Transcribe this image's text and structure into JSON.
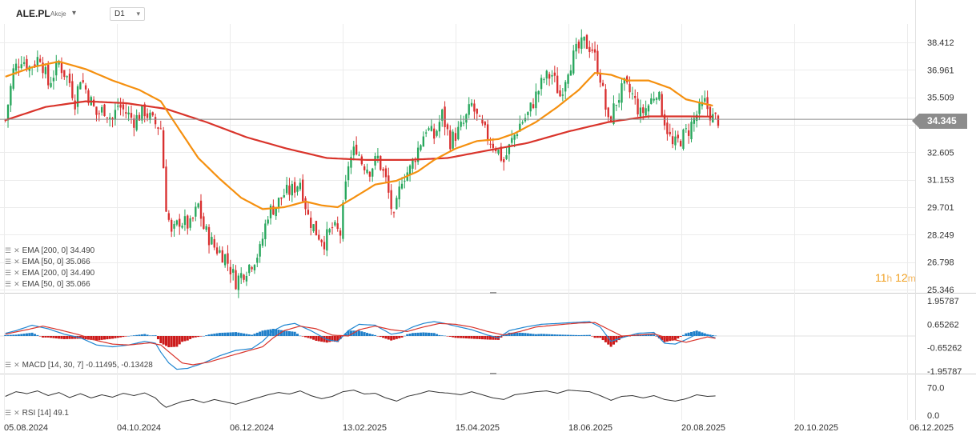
{
  "header": {
    "symbol": "ALE.PL",
    "type": "Akcje",
    "timeframe": "D1"
  },
  "legend": {
    "main": [
      "EMA [200, 0] 34.490",
      "EMA [50, 0] 35.066",
      "EMA [200, 0] 34.490",
      "EMA [50, 0] 35.066"
    ],
    "macd": "MACD [14, 30, 7] -0.11495, -0.13428",
    "rsi": "RSI [14] 49.1"
  },
  "current_price": "34.345",
  "countdown": {
    "h": "11",
    "h_unit": "h",
    "m": "12",
    "m_unit": "m"
  },
  "colors": {
    "up": "#26a65b",
    "down": "#d93030",
    "ema50": "#f5900f",
    "ema200": "#d9342b",
    "macd_line": "#1f86d1",
    "signal_line": "#d9342b",
    "hist_pos": "#1f7fc9",
    "hist_neg": "#cc1a1a",
    "rsi": "#333333",
    "grid": "#ececec"
  },
  "chart_data": [
    {
      "type": "candlestick",
      "price_axis": [
        "38.412",
        "36.961",
        "35.509",
        "34.057",
        "32.605",
        "31.153",
        "29.701",
        "28.249",
        "26.798",
        "25.346"
      ],
      "ylim": [
        25.346,
        38.412
      ],
      "date_labels": [
        "05.08.2024",
        "04.10.2024",
        "06.12.2024",
        "13.02.2025",
        "15.04.2025",
        "18.06.2025",
        "20.08.2025",
        "20.10.2025",
        "06.12.2025"
      ],
      "close_path": [
        [
          0,
          34.3
        ],
        [
          3,
          36.9
        ],
        [
          6,
          37.6
        ],
        [
          9,
          37.1
        ],
        [
          13,
          37.7
        ],
        [
          16,
          36.2
        ],
        [
          20,
          37.3
        ],
        [
          24,
          36.3
        ],
        [
          26,
          35.3
        ],
        [
          28,
          36.6
        ],
        [
          31,
          35.6
        ],
        [
          34,
          34.6
        ],
        [
          37,
          34.9
        ],
        [
          40,
          34.3
        ],
        [
          42,
          35.1
        ],
        [
          45,
          34.7
        ],
        [
          48,
          34.3
        ],
        [
          52,
          34.8
        ],
        [
          55,
          34.2
        ],
        [
          58,
          33.9
        ],
        [
          60,
          29.8
        ],
        [
          62,
          28.2
        ],
        [
          65,
          29.0
        ],
        [
          69,
          28.7
        ],
        [
          72,
          29.8
        ],
        [
          74,
          28.6
        ],
        [
          78,
          27.6
        ],
        [
          82,
          27.1
        ],
        [
          86,
          25.8
        ],
        [
          89,
          26.3
        ],
        [
          92,
          26.8
        ],
        [
          95,
          27.4
        ],
        [
          98,
          29.4
        ],
        [
          101,
          29.8
        ],
        [
          104,
          30.4
        ],
        [
          107,
          30.6
        ],
        [
          110,
          31.1
        ],
        [
          113,
          29.2
        ],
        [
          116,
          28.4
        ],
        [
          119,
          27.9
        ],
        [
          122,
          28.6
        ],
        [
          125,
          28.3
        ],
        [
          128,
          32.0
        ],
        [
          131,
          32.9
        ],
        [
          133,
          32.1
        ],
        [
          136,
          31.7
        ],
        [
          139,
          32.3
        ],
        [
          142,
          31.1
        ],
        [
          145,
          29.0
        ],
        [
          148,
          31.3
        ],
        [
          151,
          31.7
        ],
        [
          154,
          32.8
        ],
        [
          157,
          33.9
        ],
        [
          160,
          33.4
        ],
        [
          163,
          34.6
        ],
        [
          166,
          33.2
        ],
        [
          169,
          33.7
        ],
        [
          171,
          34.1
        ],
        [
          174,
          35.1
        ],
        [
          177,
          34.1
        ],
        [
          180,
          33.4
        ],
        [
          183,
          32.9
        ],
        [
          186,
          32.1
        ],
        [
          189,
          33.2
        ],
        [
          192,
          34.1
        ],
        [
          195,
          34.6
        ],
        [
          198,
          35.6
        ],
        [
          201,
          36.5
        ],
        [
          204,
          36.7
        ],
        [
          207,
          35.6
        ],
        [
          210,
          37.1
        ],
        [
          213,
          37.9
        ],
        [
          216,
          38.4
        ],
        [
          219,
          38.1
        ],
        [
          222,
          36.6
        ],
        [
          225,
          34.1
        ],
        [
          228,
          35.3
        ],
        [
          231,
          36.1
        ],
        [
          234,
          35.6
        ],
        [
          237,
          34.6
        ],
        [
          240,
          35.1
        ],
        [
          243,
          35.9
        ],
        [
          246,
          34.3
        ],
        [
          249,
          32.9
        ],
        [
          252,
          33.3
        ],
        [
          255,
          33.8
        ],
        [
          258,
          34.6
        ],
        [
          261,
          35.2
        ],
        [
          264,
          34.4
        ],
        [
          266,
          34.345
        ]
      ],
      "ema50_path": [
        [
          0,
          36.6
        ],
        [
          10,
          37.1
        ],
        [
          20,
          37.4
        ],
        [
          30,
          37.0
        ],
        [
          40,
          36.4
        ],
        [
          50,
          35.9
        ],
        [
          58,
          35.3
        ],
        [
          64,
          34.0
        ],
        [
          72,
          32.3
        ],
        [
          80,
          31.2
        ],
        [
          88,
          30.2
        ],
        [
          96,
          29.6
        ],
        [
          104,
          29.7
        ],
        [
          112,
          30.0
        ],
        [
          118,
          29.8
        ],
        [
          124,
          29.7
        ],
        [
          130,
          30.2
        ],
        [
          138,
          30.9
        ],
        [
          146,
          31.1
        ],
        [
          154,
          31.6
        ],
        [
          160,
          32.2
        ],
        [
          168,
          32.8
        ],
        [
          176,
          33.2
        ],
        [
          184,
          33.3
        ],
        [
          190,
          33.6
        ],
        [
          198,
          34.2
        ],
        [
          206,
          35.0
        ],
        [
          214,
          35.9
        ],
        [
          220,
          36.8
        ],
        [
          226,
          36.7
        ],
        [
          232,
          36.4
        ],
        [
          240,
          36.4
        ],
        [
          248,
          36.0
        ],
        [
          254,
          35.4
        ],
        [
          260,
          35.2
        ],
        [
          264,
          35.066
        ]
      ],
      "ema200_path": [
        [
          0,
          34.3
        ],
        [
          15,
          35.0
        ],
        [
          30,
          35.3
        ],
        [
          45,
          35.2
        ],
        [
          60,
          34.9
        ],
        [
          75,
          34.2
        ],
        [
          90,
          33.4
        ],
        [
          105,
          32.8
        ],
        [
          120,
          32.3
        ],
        [
          135,
          32.2
        ],
        [
          150,
          32.2
        ],
        [
          165,
          32.3
        ],
        [
          180,
          32.7
        ],
        [
          195,
          33.1
        ],
        [
          210,
          33.7
        ],
        [
          225,
          34.2
        ],
        [
          240,
          34.5
        ],
        [
          255,
          34.5
        ],
        [
          264,
          34.49
        ]
      ],
      "current_price": 34.345
    },
    {
      "type": "bar+line",
      "name": "MACD",
      "price_axis": [
        "1.95787",
        "0.65262",
        "-0.65262",
        "-1.95787"
      ],
      "ylim": [
        -1.95787,
        1.95787
      ],
      "macd_path": [
        [
          0,
          0.15
        ],
        [
          4,
          0.3
        ],
        [
          10,
          0.6
        ],
        [
          16,
          0.4
        ],
        [
          22,
          0.1
        ],
        [
          28,
          -0.1
        ],
        [
          34,
          -0.5
        ],
        [
          40,
          -0.6
        ],
        [
          46,
          -0.5
        ],
        [
          52,
          -0.3
        ],
        [
          56,
          -0.4
        ],
        [
          58,
          -0.9
        ],
        [
          61,
          -1.5
        ],
        [
          64,
          -1.85
        ],
        [
          68,
          -1.8
        ],
        [
          74,
          -1.5
        ],
        [
          80,
          -1.1
        ],
        [
          86,
          -0.8
        ],
        [
          92,
          -0.7
        ],
        [
          96,
          -0.3
        ],
        [
          100,
          0.3
        ],
        [
          104,
          0.6
        ],
        [
          108,
          0.7
        ],
        [
          114,
          0.3
        ],
        [
          120,
          -0.2
        ],
        [
          124,
          -0.3
        ],
        [
          128,
          0.3
        ],
        [
          132,
          0.65
        ],
        [
          138,
          0.6
        ],
        [
          144,
          0.1
        ],
        [
          148,
          0.2
        ],
        [
          152,
          0.5
        ],
        [
          156,
          0.7
        ],
        [
          160,
          0.8
        ],
        [
          164,
          0.7
        ],
        [
          168,
          0.55
        ],
        [
          174,
          0.35
        ],
        [
          180,
          0.05
        ],
        [
          184,
          -0.1
        ],
        [
          188,
          0.3
        ],
        [
          194,
          0.5
        ],
        [
          200,
          0.65
        ],
        [
          206,
          0.7
        ],
        [
          212,
          0.75
        ],
        [
          218,
          0.8
        ],
        [
          222,
          0.5
        ],
        [
          226,
          -0.3
        ],
        [
          230,
          -0.1
        ],
        [
          236,
          0.15
        ],
        [
          242,
          0.2
        ],
        [
          246,
          -0.4
        ],
        [
          250,
          -0.45
        ],
        [
          254,
          -0.2
        ],
        [
          258,
          0.1
        ],
        [
          262,
          0.05
        ],
        [
          265,
          -0.11
        ]
      ],
      "signal_path": [
        [
          0,
          0.1
        ],
        [
          8,
          0.35
        ],
        [
          14,
          0.55
        ],
        [
          20,
          0.35
        ],
        [
          28,
          0.05
        ],
        [
          34,
          -0.25
        ],
        [
          40,
          -0.45
        ],
        [
          46,
          -0.5
        ],
        [
          54,
          -0.38
        ],
        [
          58,
          -0.5
        ],
        [
          62,
          -1.0
        ],
        [
          66,
          -1.5
        ],
        [
          70,
          -1.6
        ],
        [
          76,
          -1.45
        ],
        [
          84,
          -1.1
        ],
        [
          90,
          -0.85
        ],
        [
          96,
          -0.6
        ],
        [
          100,
          -0.1
        ],
        [
          104,
          0.3
        ],
        [
          110,
          0.55
        ],
        [
          116,
          0.4
        ],
        [
          122,
          0.05
        ],
        [
          128,
          0.0
        ],
        [
          132,
          0.35
        ],
        [
          138,
          0.55
        ],
        [
          144,
          0.35
        ],
        [
          150,
          0.25
        ],
        [
          156,
          0.5
        ],
        [
          162,
          0.7
        ],
        [
          168,
          0.65
        ],
        [
          174,
          0.5
        ],
        [
          180,
          0.25
        ],
        [
          186,
          0.05
        ],
        [
          192,
          0.25
        ],
        [
          198,
          0.5
        ],
        [
          206,
          0.62
        ],
        [
          214,
          0.72
        ],
        [
          220,
          0.75
        ],
        [
          226,
          0.3
        ],
        [
          230,
          0.0
        ],
        [
          236,
          0.05
        ],
        [
          242,
          0.12
        ],
        [
          248,
          -0.15
        ],
        [
          254,
          -0.35
        ],
        [
          258,
          -0.2
        ],
        [
          262,
          -0.05
        ],
        [
          265,
          -0.13
        ]
      ],
      "hist_scale": 1.0
    },
    {
      "type": "line",
      "name": "RSI",
      "price_axis": [
        "70.0",
        "0.0"
      ],
      "ylim": [
        0,
        100
      ],
      "rsi_path": [
        [
          0,
          48
        ],
        [
          4,
          60
        ],
        [
          8,
          55
        ],
        [
          12,
          62
        ],
        [
          16,
          50
        ],
        [
          20,
          58
        ],
        [
          24,
          45
        ],
        [
          28,
          55
        ],
        [
          32,
          44
        ],
        [
          36,
          52
        ],
        [
          40,
          46
        ],
        [
          44,
          56
        ],
        [
          48,
          50
        ],
        [
          52,
          57
        ],
        [
          56,
          44
        ],
        [
          58,
          30
        ],
        [
          60,
          20
        ],
        [
          62,
          25
        ],
        [
          66,
          35
        ],
        [
          70,
          40
        ],
        [
          74,
          32
        ],
        [
          78,
          40
        ],
        [
          82,
          34
        ],
        [
          86,
          28
        ],
        [
          90,
          36
        ],
        [
          94,
          44
        ],
        [
          98,
          52
        ],
        [
          102,
          58
        ],
        [
          106,
          54
        ],
        [
          110,
          62
        ],
        [
          114,
          50
        ],
        [
          118,
          42
        ],
        [
          122,
          48
        ],
        [
          126,
          60
        ],
        [
          130,
          64
        ],
        [
          134,
          54
        ],
        [
          138,
          56
        ],
        [
          142,
          44
        ],
        [
          146,
          36
        ],
        [
          150,
          48
        ],
        [
          154,
          54
        ],
        [
          158,
          62
        ],
        [
          162,
          58
        ],
        [
          166,
          56
        ],
        [
          170,
          52
        ],
        [
          174,
          60
        ],
        [
          178,
          52
        ],
        [
          182,
          44
        ],
        [
          186,
          40
        ],
        [
          190,
          52
        ],
        [
          194,
          56
        ],
        [
          198,
          60
        ],
        [
          202,
          62
        ],
        [
          206,
          56
        ],
        [
          210,
          64
        ],
        [
          214,
          62
        ],
        [
          218,
          60
        ],
        [
          222,
          50
        ],
        [
          226,
          38
        ],
        [
          230,
          48
        ],
        [
          234,
          50
        ],
        [
          238,
          44
        ],
        [
          242,
          50
        ],
        [
          246,
          40
        ],
        [
          250,
          36
        ],
        [
          254,
          42
        ],
        [
          258,
          52
        ],
        [
          262,
          48
        ],
        [
          265,
          49.1
        ]
      ]
    }
  ]
}
